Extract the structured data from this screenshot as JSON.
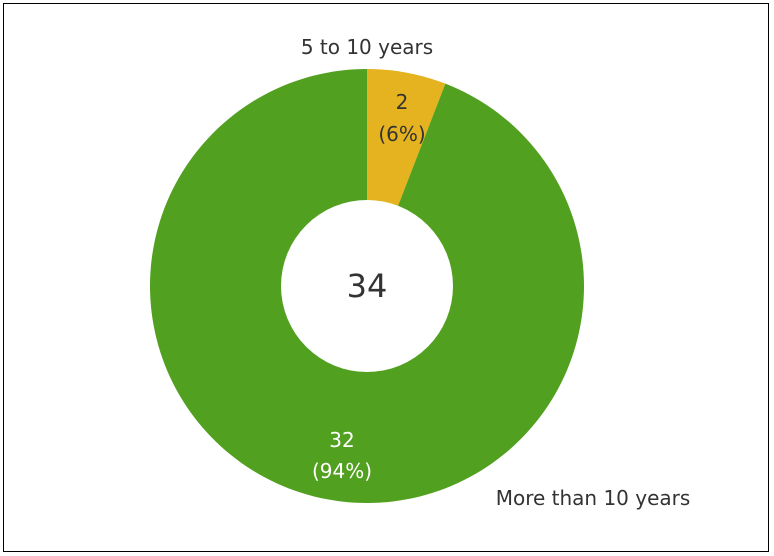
{
  "chart_data": {
    "type": "pie",
    "donut": true,
    "total_label": "34",
    "slices": [
      {
        "category": "5 to 10 years",
        "value": 2,
        "value_label": "2",
        "percent_label": "(6%)",
        "color": "#e5b31f",
        "label_color": "#333333"
      },
      {
        "category": "More than 10 years",
        "value": 32,
        "value_label": "32",
        "percent_label": "(94%)",
        "color": "#52a020",
        "label_color": "#ffffff"
      }
    ]
  }
}
